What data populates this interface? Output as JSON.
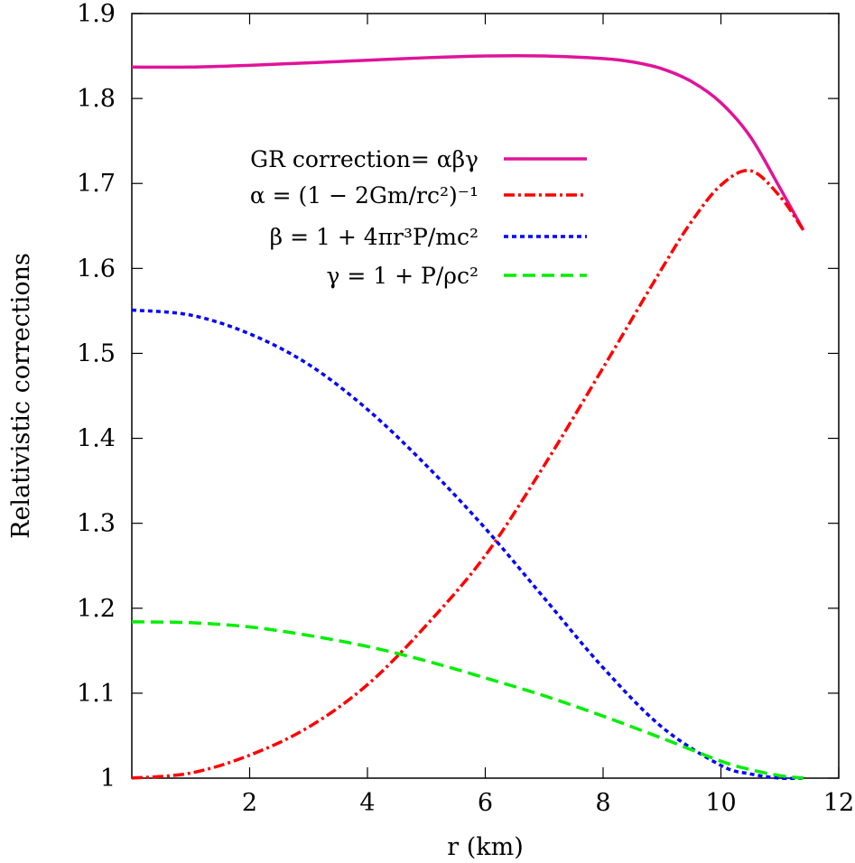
{
  "chart_data": {
    "type": "line",
    "xlabel": "r (km)",
    "ylabel": "Relativistic corrections",
    "xlim": [
      0,
      12
    ],
    "ylim": [
      1,
      1.9
    ],
    "xticks": [
      2,
      4,
      6,
      8,
      10,
      12
    ],
    "yticks": [
      1,
      1.1,
      1.2,
      1.3,
      1.4,
      1.5,
      1.6,
      1.7,
      1.8,
      1.9
    ],
    "ytick_labels": [
      "1",
      "1.1",
      "1.2",
      "1.3",
      "1.4",
      "1.5",
      "1.6",
      "1.7",
      "1.8",
      "1.9"
    ],
    "grid": false,
    "legend_position": "top-center",
    "series": [
      {
        "name": "GR correction= αβγ",
        "color": "#e0139a",
        "style": "solid",
        "x": [
          0,
          1,
          2,
          3,
          4,
          5,
          6,
          7,
          8,
          8.5,
          9,
          9.5,
          10,
          10.5,
          11,
          11.4
        ],
        "y": [
          1.837,
          1.837,
          1.839,
          1.842,
          1.845,
          1.848,
          1.85,
          1.85,
          1.847,
          1.843,
          1.835,
          1.82,
          1.795,
          1.755,
          1.695,
          1.645
        ]
      },
      {
        "name": "α = (1 − 2Gm/rc²)⁻¹",
        "color": "#ff0000",
        "style": "dashdot",
        "x": [
          0,
          1,
          2,
          3,
          4,
          5,
          6,
          7,
          8,
          9,
          9.5,
          10,
          10.5,
          11,
          11.4
        ],
        "y": [
          1.0,
          1.006,
          1.027,
          1.06,
          1.11,
          1.18,
          1.262,
          1.368,
          1.483,
          1.6,
          1.655,
          1.698,
          1.715,
          1.685,
          1.645
        ]
      },
      {
        "name": "β = 1 + 4πr³P/mc²",
        "color": "#0000ff",
        "style": "dotted",
        "x": [
          0,
          1,
          2,
          3,
          4,
          5,
          6,
          7,
          8,
          9,
          10,
          10.5,
          11,
          11.4
        ],
        "y": [
          1.551,
          1.545,
          1.523,
          1.487,
          1.434,
          1.368,
          1.294,
          1.212,
          1.13,
          1.06,
          1.015,
          1.005,
          1.0,
          1.0
        ]
      },
      {
        "name": "γ = 1 + P/ρc²",
        "color": "#00ee00",
        "style": "dashed",
        "x": [
          0,
          1,
          2,
          3,
          4,
          5,
          6,
          7,
          8,
          9,
          10,
          10.5,
          11,
          11.4
        ],
        "y": [
          1.184,
          1.183,
          1.178,
          1.168,
          1.155,
          1.138,
          1.118,
          1.097,
          1.073,
          1.047,
          1.02,
          1.01,
          1.003,
          1.0
        ]
      }
    ]
  }
}
